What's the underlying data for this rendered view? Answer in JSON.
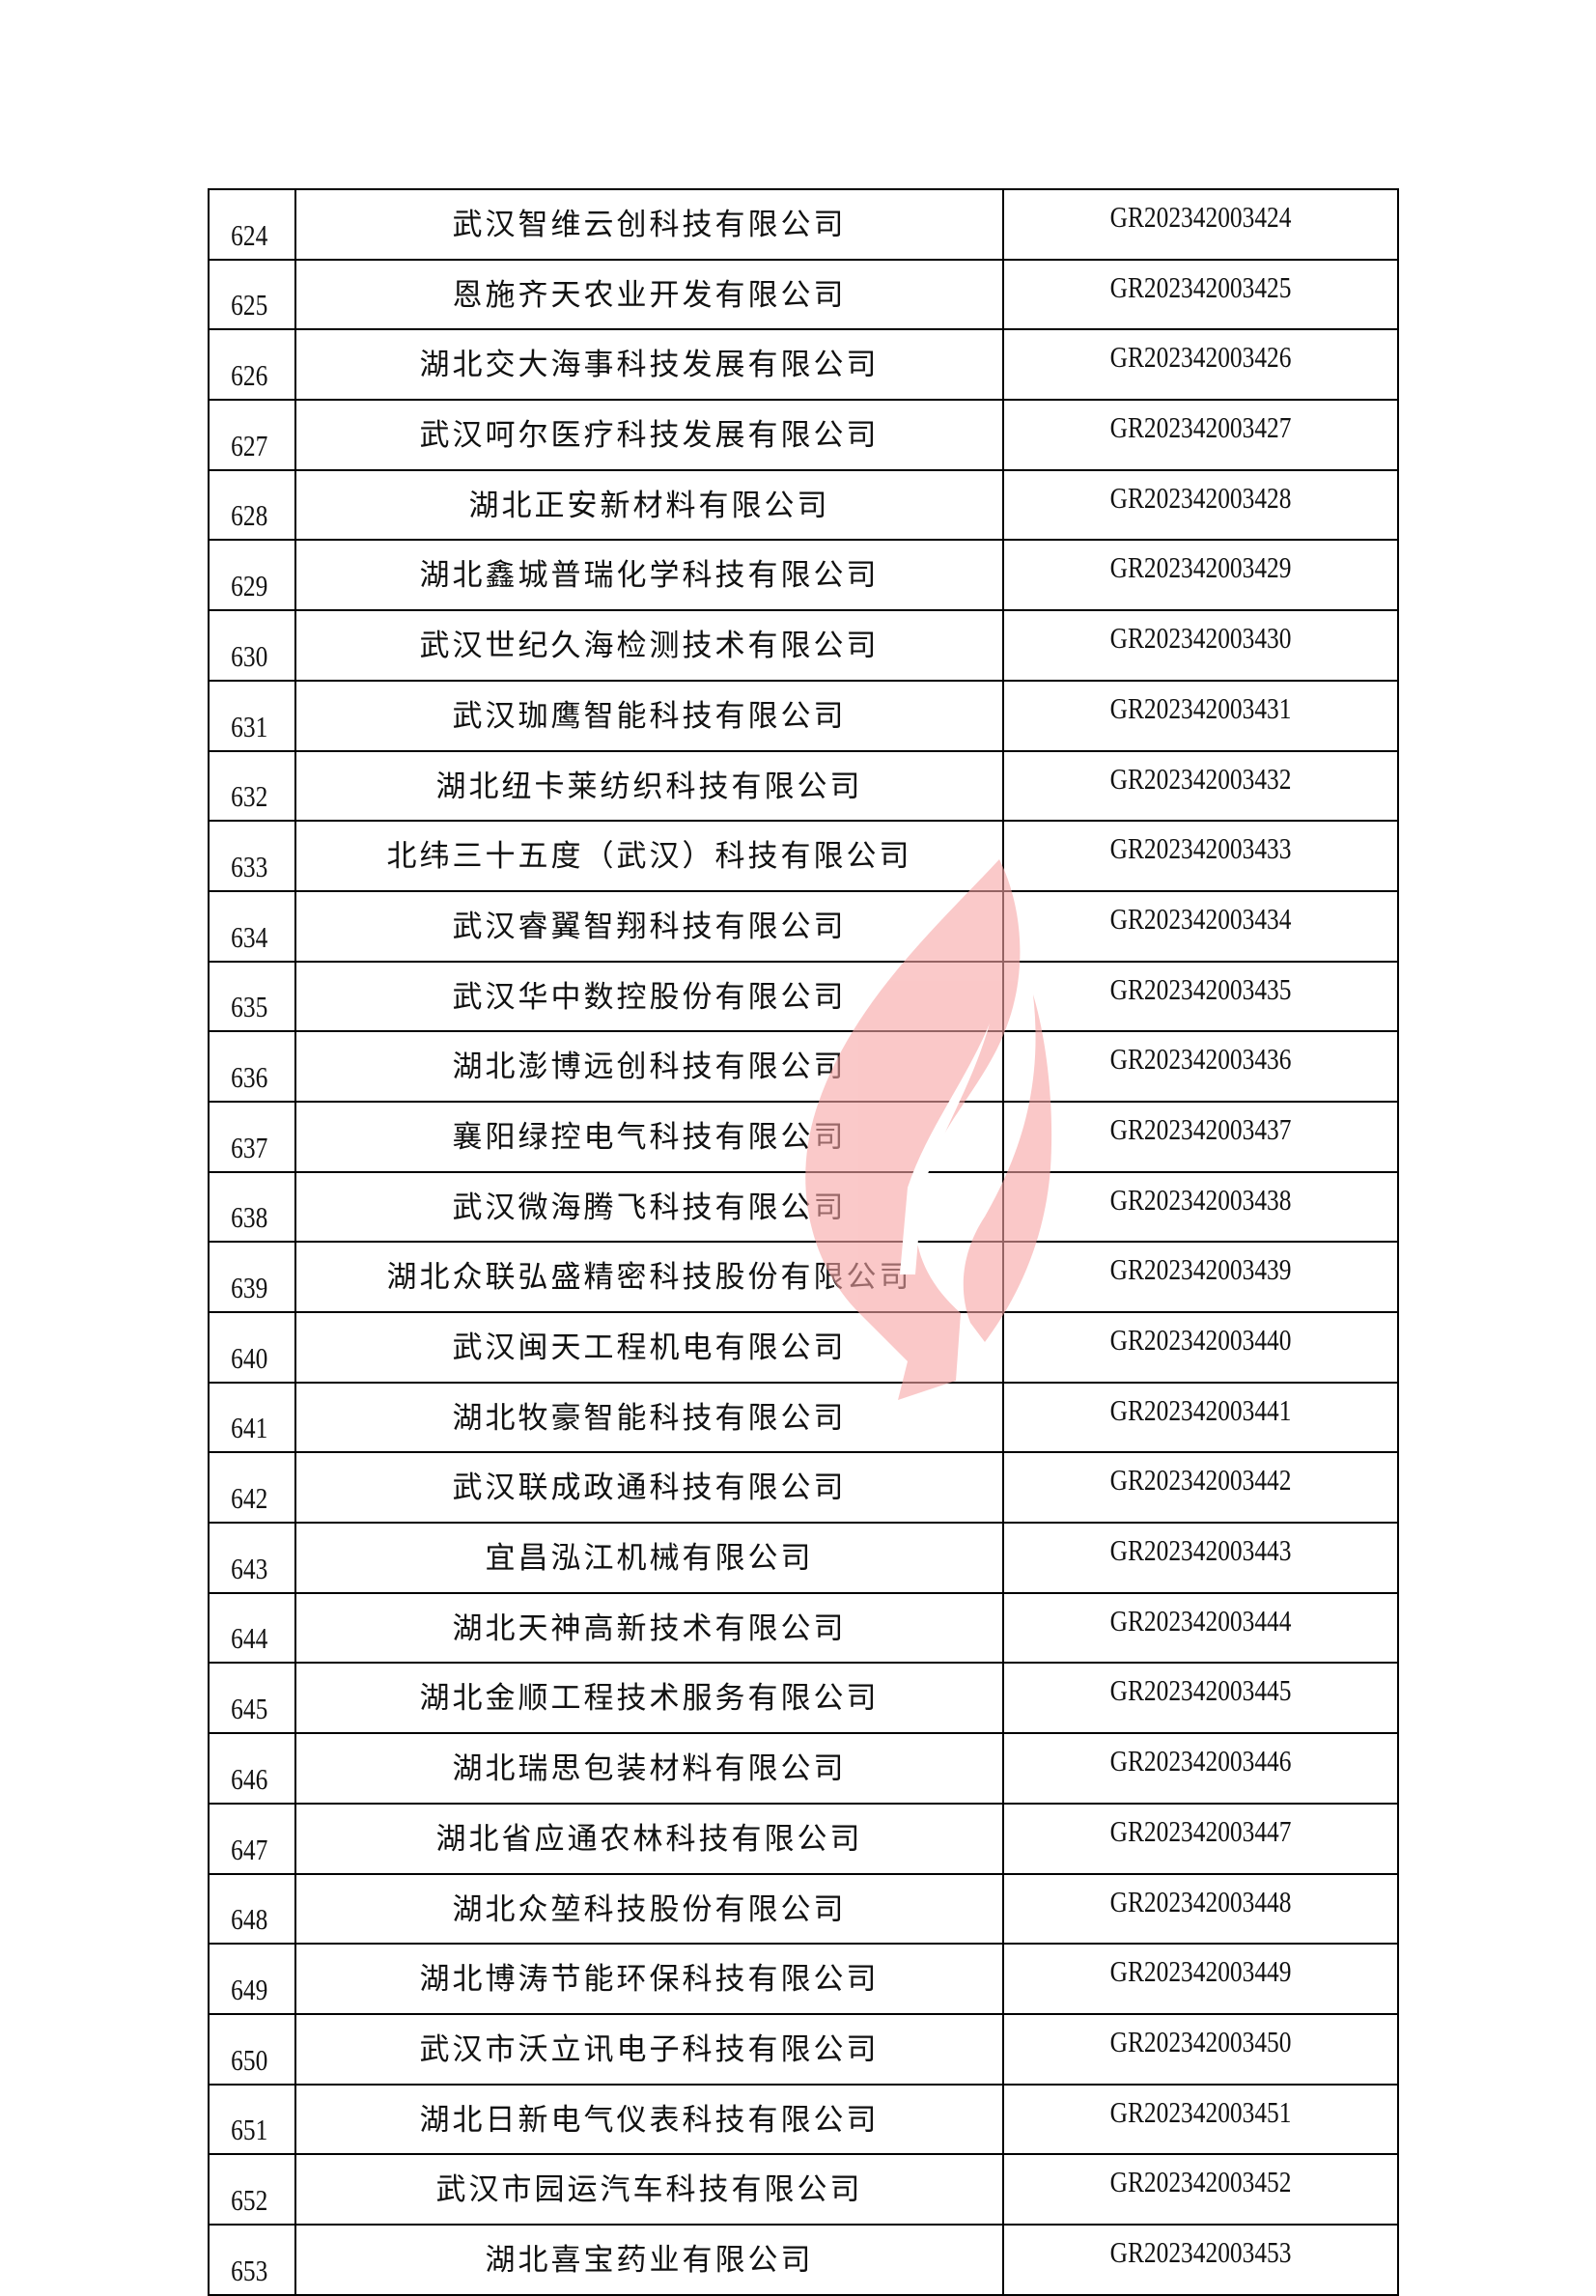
{
  "watermark": {
    "type": "flame-logo",
    "color": "#f7b3b3"
  },
  "rows": [
    {
      "no": "624",
      "name": "武汉智维云创科技有限公司",
      "code": "GR202342003424"
    },
    {
      "no": "625",
      "name": "恩施齐天农业开发有限公司",
      "code": "GR202342003425"
    },
    {
      "no": "626",
      "name": "湖北交大海事科技发展有限公司",
      "code": "GR202342003426"
    },
    {
      "no": "627",
      "name": "武汉呵尔医疗科技发展有限公司",
      "code": "GR202342003427"
    },
    {
      "no": "628",
      "name": "湖北正安新材料有限公司",
      "code": "GR202342003428"
    },
    {
      "no": "629",
      "name": "湖北鑫城普瑞化学科技有限公司",
      "code": "GR202342003429"
    },
    {
      "no": "630",
      "name": "武汉世纪久海检测技术有限公司",
      "code": "GR202342003430"
    },
    {
      "no": "631",
      "name": "武汉珈鹰智能科技有限公司",
      "code": "GR202342003431"
    },
    {
      "no": "632",
      "name": "湖北纽卡莱纺织科技有限公司",
      "code": "GR202342003432"
    },
    {
      "no": "633",
      "name": "北纬三十五度（武汉）科技有限公司",
      "code": "GR202342003433"
    },
    {
      "no": "634",
      "name": "武汉睿翼智翔科技有限公司",
      "code": "GR202342003434"
    },
    {
      "no": "635",
      "name": "武汉华中数控股份有限公司",
      "code": "GR202342003435"
    },
    {
      "no": "636",
      "name": "湖北澎博远创科技有限公司",
      "code": "GR202342003436"
    },
    {
      "no": "637",
      "name": "襄阳绿控电气科技有限公司",
      "code": "GR202342003437"
    },
    {
      "no": "638",
      "name": "武汉微海腾飞科技有限公司",
      "code": "GR202342003438"
    },
    {
      "no": "639",
      "name": "湖北众联弘盛精密科技股份有限公司",
      "code": "GR202342003439"
    },
    {
      "no": "640",
      "name": "武汉闽天工程机电有限公司",
      "code": "GR202342003440"
    },
    {
      "no": "641",
      "name": "湖北牧豪智能科技有限公司",
      "code": "GR202342003441"
    },
    {
      "no": "642",
      "name": "武汉联成政通科技有限公司",
      "code": "GR202342003442"
    },
    {
      "no": "643",
      "name": "宜昌泓江机械有限公司",
      "code": "GR202342003443"
    },
    {
      "no": "644",
      "name": "湖北天神高新技术有限公司",
      "code": "GR202342003444"
    },
    {
      "no": "645",
      "name": "湖北金顺工程技术服务有限公司",
      "code": "GR202342003445"
    },
    {
      "no": "646",
      "name": "湖北瑞思包装材料有限公司",
      "code": "GR202342003446"
    },
    {
      "no": "647",
      "name": "湖北省应通农林科技有限公司",
      "code": "GR202342003447"
    },
    {
      "no": "648",
      "name": "湖北众堃科技股份有限公司",
      "code": "GR202342003448"
    },
    {
      "no": "649",
      "name": "湖北博涛节能环保科技有限公司",
      "code": "GR202342003449"
    },
    {
      "no": "650",
      "name": "武汉市沃立讯电子科技有限公司",
      "code": "GR202342003450"
    },
    {
      "no": "651",
      "name": "湖北日新电气仪表科技有限公司",
      "code": "GR202342003451"
    },
    {
      "no": "652",
      "name": "武汉市园运汽车科技有限公司",
      "code": "GR202342003452"
    },
    {
      "no": "653",
      "name": "湖北喜宝药业有限公司",
      "code": "GR202342003453"
    }
  ]
}
